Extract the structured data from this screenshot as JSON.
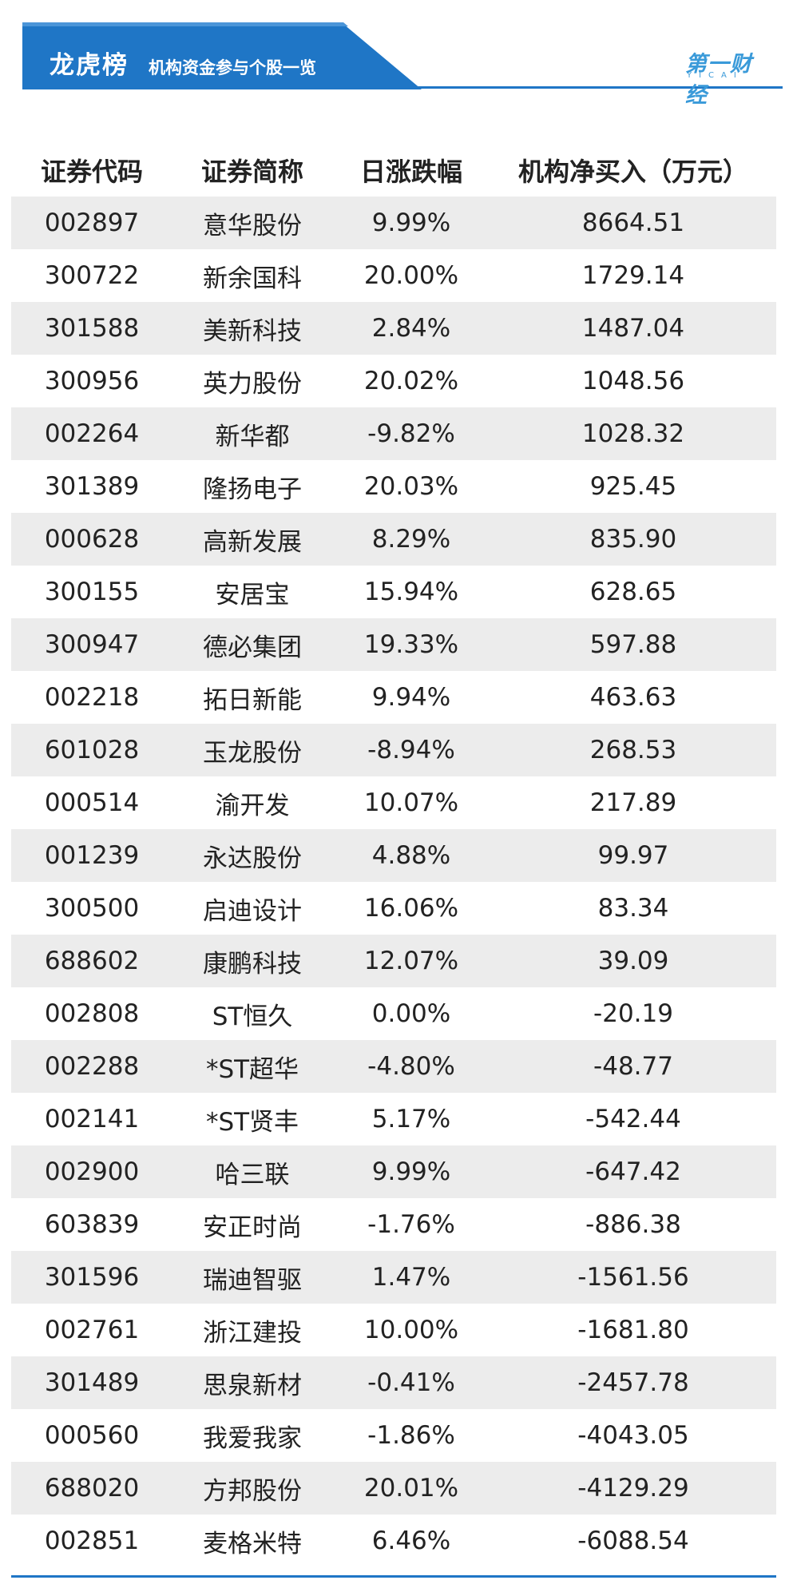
{
  "banner": {
    "title": "龙虎榜",
    "subtitle": "机构资金参与个股一览"
  },
  "logo": {
    "text": "第一财经",
    "sub": "YICAI"
  },
  "colors": {
    "banner_blue": "#1f76c6",
    "up_red": "#e8141b",
    "down_green": "#1ea63a",
    "stripe_gray": "#ececec"
  },
  "table": {
    "headers": [
      "证券代码",
      "证券简称",
      "日涨跌幅",
      "机构净买入（万元）"
    ],
    "rows": [
      {
        "code": "002897",
        "name": "意华股份",
        "change": "9.99%",
        "net": "8664.51"
      },
      {
        "code": "300722",
        "name": "新余国科",
        "change": "20.00%",
        "net": "1729.14"
      },
      {
        "code": "301588",
        "name": "美新科技",
        "change": "2.84%",
        "net": "1487.04"
      },
      {
        "code": "300956",
        "name": "英力股份",
        "change": "20.02%",
        "net": "1048.56"
      },
      {
        "code": "002264",
        "name": "新华都",
        "change": "-9.82%",
        "net": "1028.32"
      },
      {
        "code": "301389",
        "name": "隆扬电子",
        "change": "20.03%",
        "net": "925.45"
      },
      {
        "code": "000628",
        "name": "高新发展",
        "change": "8.29%",
        "net": "835.90"
      },
      {
        "code": "300155",
        "name": "安居宝",
        "change": "15.94%",
        "net": "628.65"
      },
      {
        "code": "300947",
        "name": "德必集团",
        "change": "19.33%",
        "net": "597.88"
      },
      {
        "code": "002218",
        "name": "拓日新能",
        "change": "9.94%",
        "net": "463.63"
      },
      {
        "code": "601028",
        "name": "玉龙股份",
        "change": "-8.94%",
        "net": "268.53"
      },
      {
        "code": "000514",
        "name": "渝开发",
        "change": "10.07%",
        "net": "217.89"
      },
      {
        "code": "001239",
        "name": "永达股份",
        "change": "4.88%",
        "net": "99.97"
      },
      {
        "code": "300500",
        "name": "启迪设计",
        "change": "16.06%",
        "net": "83.34"
      },
      {
        "code": "688602",
        "name": "康鹏科技",
        "change": "12.07%",
        "net": "39.09"
      },
      {
        "code": "002808",
        "name": "ST恒久",
        "change": "0.00%",
        "net": "-20.19"
      },
      {
        "code": "002288",
        "name": "*ST超华",
        "change": "-4.80%",
        "net": "-48.77"
      },
      {
        "code": "002141",
        "name": "*ST贤丰",
        "change": "5.17%",
        "net": "-542.44"
      },
      {
        "code": "002900",
        "name": "哈三联",
        "change": "9.99%",
        "net": "-647.42"
      },
      {
        "code": "603839",
        "name": "安正时尚",
        "change": "-1.76%",
        "net": "-886.38"
      },
      {
        "code": "301596",
        "name": "瑞迪智驱",
        "change": "1.47%",
        "net": "-1561.56"
      },
      {
        "code": "002761",
        "name": "浙江建投",
        "change": "10.00%",
        "net": "-1681.80"
      },
      {
        "code": "301489",
        "name": "思泉新材",
        "change": "-0.41%",
        "net": "-2457.78"
      },
      {
        "code": "000560",
        "name": "我爱我家",
        "change": "-1.86%",
        "net": "-4043.05"
      },
      {
        "code": "688020",
        "name": "方邦股份",
        "change": "20.01%",
        "net": "-4129.29"
      },
      {
        "code": "002851",
        "name": "麦格米特",
        "change": "6.46%",
        "net": "-6088.54"
      }
    ]
  }
}
